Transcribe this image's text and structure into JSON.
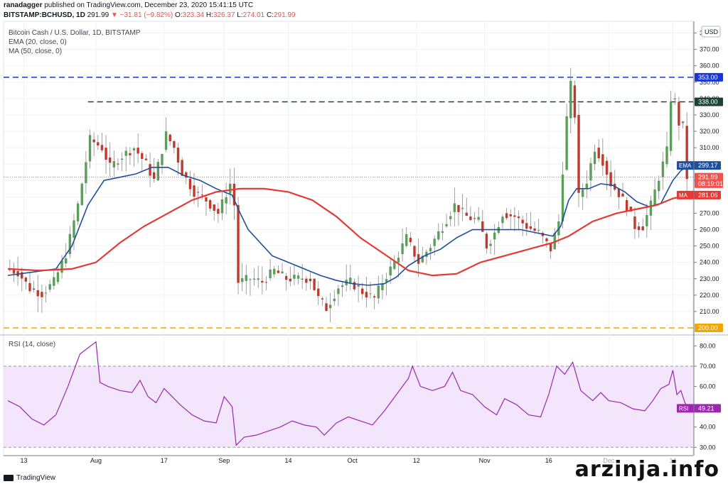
{
  "header": {
    "author": "ranadagger",
    "published": "published on TradingView.com, December 23, 2020 15:41:15 UTC",
    "symbol": "BITSTAMP:BCHUSD, 1D",
    "last": "291.99",
    "change": "▼ −31.81 (−9.82%)",
    "o_label": "O:",
    "o": "323.34",
    "h_label": "H:",
    "h": "326.37",
    "l_label": "L:",
    "l": "274.01",
    "c_label": "C:",
    "c": "291.99"
  },
  "legend": {
    "title": "Bitcoin Cash / U.S. Dollar, 1D, BITSTAMP",
    "ema": "EMA (20, close, 0)",
    "ma": "MA (50, close, 0)"
  },
  "rsi_legend": "RSI (14, close)",
  "footer": {
    "logo_text": "TradingView"
  },
  "watermark": "arzinja.info",
  "colors": {
    "up": "#26a69a",
    "up_body": "#5a9e5a",
    "down": "#c0392b",
    "ema": "#1e4f9b",
    "ma": "#e53935",
    "rsi": "#9c27b0",
    "rsi_band": "#f3e5fc",
    "blue_line": "#1a35d8",
    "green_line": "#1b4332",
    "orange_line": "#f0a800"
  },
  "chart_data": [
    {
      "type": "candlestick",
      "title": "Bitcoin Cash / U.S. Dollar, 1D, BITSTAMP",
      "currency": "USD",
      "ylim": [
        200,
        385
      ],
      "yticks": [
        210,
        220,
        230,
        240,
        250,
        260,
        270,
        280,
        290,
        300,
        310,
        320,
        330,
        340,
        350,
        360,
        370,
        380
      ],
      "xticks": [
        "13",
        "Aug",
        "17",
        "Sep",
        "14",
        "Oct",
        "12",
        "Nov",
        "16",
        "Dec",
        "14"
      ],
      "xtick_index": [
        4,
        22,
        39,
        54,
        70,
        86,
        102,
        119,
        135,
        150,
        166
      ],
      "n_bars": 170,
      "price_path": [
        [
          0,
          236
        ],
        [
          3,
          234
        ],
        [
          6,
          224
        ],
        [
          9,
          221
        ],
        [
          12,
          228
        ],
        [
          15,
          245
        ],
        [
          18,
          275
        ],
        [
          21,
          315
        ],
        [
          24,
          310
        ],
        [
          26,
          298
        ],
        [
          29,
          305
        ],
        [
          32,
          310
        ],
        [
          35,
          300
        ],
        [
          37,
          290
        ],
        [
          40,
          318
        ],
        [
          42,
          310
        ],
        [
          44,
          295
        ],
        [
          47,
          283
        ],
        [
          50,
          278
        ],
        [
          53,
          270
        ],
        [
          56,
          288
        ],
        [
          57,
          275
        ],
        [
          58,
          228
        ],
        [
          61,
          230
        ],
        [
          64,
          228
        ],
        [
          67,
          235
        ],
        [
          70,
          230
        ],
        [
          73,
          230
        ],
        [
          76,
          230
        ],
        [
          78,
          218
        ],
        [
          80,
          212
        ],
        [
          83,
          225
        ],
        [
          86,
          228
        ],
        [
          89,
          222
        ],
        [
          92,
          218
        ],
        [
          94,
          228
        ],
        [
          97,
          240
        ],
        [
          100,
          255
        ],
        [
          103,
          240
        ],
        [
          106,
          250
        ],
        [
          109,
          262
        ],
        [
          112,
          275
        ],
        [
          115,
          268
        ],
        [
          118,
          265
        ],
        [
          120,
          250
        ],
        [
          122,
          258
        ],
        [
          124,
          270
        ],
        [
          127,
          268
        ],
        [
          130,
          262
        ],
        [
          133,
          258
        ],
        [
          136,
          248
        ],
        [
          138,
          265
        ],
        [
          140,
          328
        ],
        [
          141,
          348
        ],
        [
          142,
          330
        ],
        [
          143,
          280
        ],
        [
          145,
          290
        ],
        [
          147,
          310
        ],
        [
          149,
          302
        ],
        [
          151,
          288
        ],
        [
          153,
          282
        ],
        [
          155,
          274
        ],
        [
          157,
          262
        ],
        [
          159,
          262
        ],
        [
          161,
          275
        ],
        [
          163,
          292
        ],
        [
          165,
          308
        ],
        [
          166,
          340
        ],
        [
          167,
          338
        ],
        [
          168,
          325
        ],
        [
          169,
          323.34
        ],
        [
          170,
          291.99
        ]
      ],
      "rsi_path": [
        [
          0,
          53
        ],
        [
          3,
          50
        ],
        [
          6,
          44
        ],
        [
          9,
          41
        ],
        [
          12,
          46
        ],
        [
          15,
          60
        ],
        [
          18,
          76
        ],
        [
          20,
          79
        ],
        [
          22,
          82
        ],
        [
          23,
          62
        ],
        [
          25,
          60
        ],
        [
          28,
          58
        ],
        [
          31,
          57
        ],
        [
          33,
          63
        ],
        [
          35,
          55
        ],
        [
          37,
          52
        ],
        [
          39,
          59
        ],
        [
          41,
          55
        ],
        [
          43,
          51
        ],
        [
          46,
          46
        ],
        [
          49,
          43
        ],
        [
          52,
          42
        ],
        [
          54,
          55
        ],
        [
          56,
          50
        ],
        [
          57,
          31
        ],
        [
          59,
          35
        ],
        [
          62,
          36
        ],
        [
          65,
          38
        ],
        [
          68,
          40
        ],
        [
          71,
          43
        ],
        [
          74,
          41
        ],
        [
          77,
          40
        ],
        [
          79,
          36
        ],
        [
          82,
          42
        ],
        [
          85,
          45
        ],
        [
          88,
          43
        ],
        [
          91,
          41
        ],
        [
          94,
          48
        ],
        [
          97,
          56
        ],
        [
          100,
          64
        ],
        [
          101,
          70
        ],
        [
          103,
          60
        ],
        [
          106,
          58
        ],
        [
          109,
          60
        ],
        [
          111,
          67
        ],
        [
          113,
          58
        ],
        [
          116,
          56
        ],
        [
          119,
          50
        ],
        [
          122,
          46
        ],
        [
          124,
          54
        ],
        [
          127,
          51
        ],
        [
          130,
          46
        ],
        [
          133,
          45
        ],
        [
          135,
          56
        ],
        [
          137,
          70
        ],
        [
          139,
          66
        ],
        [
          141,
          72
        ],
        [
          143,
          58
        ],
        [
          146,
          53
        ],
        [
          148,
          57
        ],
        [
          150,
          53
        ],
        [
          153,
          52
        ],
        [
          156,
          49
        ],
        [
          159,
          48
        ],
        [
          161,
          53
        ],
        [
          163,
          59
        ],
        [
          165,
          61
        ],
        [
          166,
          68
        ],
        [
          167,
          56
        ],
        [
          168,
          58
        ],
        [
          169,
          52
        ],
        [
          170,
          49.21
        ]
      ],
      "ema_path": [
        [
          0,
          232
        ],
        [
          6,
          234
        ],
        [
          12,
          236
        ],
        [
          16,
          250
        ],
        [
          20,
          275
        ],
        [
          24,
          290
        ],
        [
          28,
          292
        ],
        [
          32,
          294
        ],
        [
          36,
          298
        ],
        [
          40,
          298
        ],
        [
          44,
          293
        ],
        [
          48,
          290
        ],
        [
          52,
          285
        ],
        [
          56,
          281
        ],
        [
          58,
          270
        ],
        [
          60,
          260
        ],
        [
          63,
          252
        ],
        [
          66,
          244
        ],
        [
          70,
          240
        ],
        [
          74,
          236
        ],
        [
          78,
          232
        ],
        [
          82,
          229
        ],
        [
          86,
          227
        ],
        [
          90,
          226
        ],
        [
          94,
          227
        ],
        [
          97,
          231
        ],
        [
          100,
          238
        ],
        [
          104,
          244
        ],
        [
          108,
          248
        ],
        [
          112,
          255
        ],
        [
          116,
          260
        ],
        [
          120,
          260
        ],
        [
          124,
          260
        ],
        [
          128,
          260
        ],
        [
          132,
          258
        ],
        [
          136,
          256
        ],
        [
          138,
          262
        ],
        [
          140,
          278
        ],
        [
          142,
          285
        ],
        [
          145,
          285
        ],
        [
          148,
          288
        ],
        [
          151,
          287
        ],
        [
          154,
          283
        ],
        [
          157,
          277
        ],
        [
          160,
          274
        ],
        [
          163,
          276
        ],
        [
          166,
          290
        ],
        [
          168,
          296
        ],
        [
          170,
          299.17
        ]
      ],
      "ma_path": [
        [
          0,
          236
        ],
        [
          8,
          235
        ],
        [
          16,
          236
        ],
        [
          22,
          240
        ],
        [
          28,
          252
        ],
        [
          34,
          262
        ],
        [
          40,
          270
        ],
        [
          46,
          278
        ],
        [
          52,
          283
        ],
        [
          58,
          285
        ],
        [
          64,
          285
        ],
        [
          70,
          283
        ],
        [
          76,
          278
        ],
        [
          82,
          268
        ],
        [
          88,
          255
        ],
        [
          94,
          245
        ],
        [
          100,
          235
        ],
        [
          106,
          232
        ],
        [
          112,
          233
        ],
        [
          118,
          240
        ],
        [
          124,
          244
        ],
        [
          130,
          248
        ],
        [
          136,
          252
        ],
        [
          140,
          256
        ],
        [
          146,
          265
        ],
        [
          152,
          270
        ],
        [
          158,
          273
        ],
        [
          162,
          275
        ],
        [
          166,
          279
        ],
        [
          170,
          281.06
        ]
      ],
      "levels": [
        {
          "value": 353.0,
          "label": "353.00",
          "style": "dashed-blue"
        },
        {
          "value": 338.0,
          "label": "338.00",
          "style": "dashed-green",
          "start_index": 20
        },
        {
          "value": 200.0,
          "label": "200.00",
          "style": "dashed-orange"
        }
      ],
      "axis_labels": [
        {
          "text": "EMA",
          "value_text": "299.17",
          "value": 299.17,
          "color": "#1e4f9b"
        },
        {
          "text": "",
          "value_text": "291.99",
          "value": 291.99,
          "color": "#ef5350"
        },
        {
          "text": "",
          "value_text": "08:19:01",
          "value": 288.0,
          "color": "#ef5350"
        },
        {
          "text": "MA",
          "value_text": "281.06",
          "value": 281.06,
          "color": "#e53935"
        }
      ],
      "axis_unit": "USD"
    },
    {
      "type": "line",
      "title": "RSI (14, close)",
      "ylim": [
        28,
        84
      ],
      "yticks": [
        30,
        40,
        50,
        60,
        70,
        80
      ],
      "band": [
        30,
        70
      ],
      "last_label": {
        "text": "RSI",
        "value": 49.21,
        "value_text": "49.21"
      }
    }
  ]
}
